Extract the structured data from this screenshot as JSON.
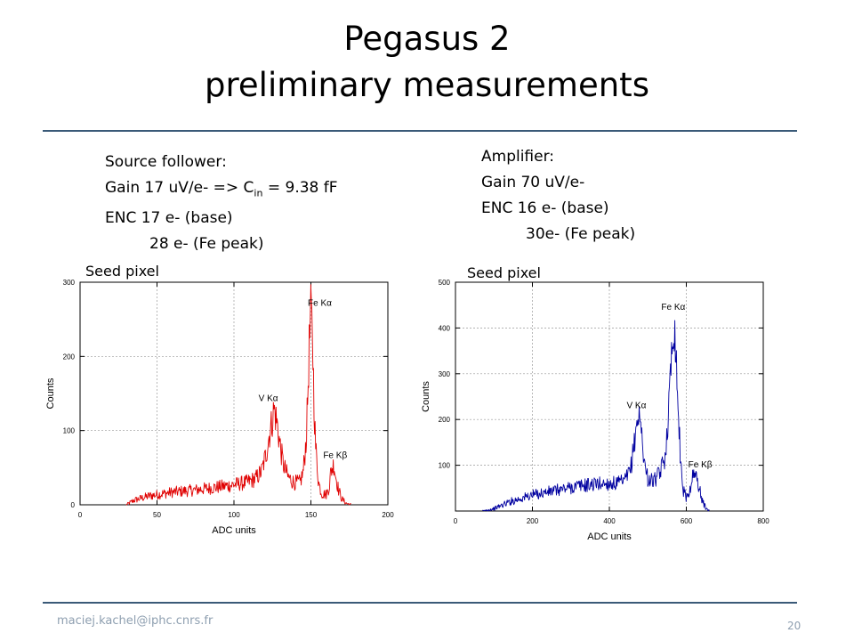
{
  "slide": {
    "title_line1": "Pegasus 2",
    "title_line2": "preliminary measurements",
    "footer_email": "maciej.kachel@iphc.cnrs.fr",
    "page_number": "20",
    "rule_color": "#3a5a78"
  },
  "left_info": {
    "heading": "Source follower:",
    "gain": "Gain 17 uV/e-  => C",
    "gain_sub": "in",
    "gain_tail": " = 9.38 fF",
    "enc": "ENC 17 e- (base)",
    "enc_peak": "28 e- (Fe peak)"
  },
  "right_info": {
    "heading": "Amplifier:",
    "gain": "Gain 70 uV/e-",
    "enc": "ENC 16 e- (base)",
    "enc_peak": "30e- (Fe peak)"
  },
  "chart_data": [
    {
      "type": "line",
      "heading": "Seed pixel",
      "xlabel": "ADC units",
      "ylabel": "Counts",
      "xlim": [
        0,
        200
      ],
      "ylim": [
        0,
        300
      ],
      "xticks": [
        0,
        50,
        100,
        150,
        200
      ],
      "yticks": [
        0,
        100,
        200,
        300
      ],
      "grid": true,
      "color": "#e00000",
      "envelope": [
        [
          30,
          0
        ],
        [
          35,
          6
        ],
        [
          45,
          12
        ],
        [
          60,
          17
        ],
        [
          75,
          20
        ],
        [
          90,
          24
        ],
        [
          100,
          27
        ],
        [
          108,
          30
        ],
        [
          114,
          35
        ],
        [
          118,
          45
        ],
        [
          121,
          70
        ],
        [
          123,
          95
        ],
        [
          125,
          115
        ],
        [
          126,
          130
        ],
        [
          128,
          110
        ],
        [
          130,
          80
        ],
        [
          132,
          55
        ],
        [
          135,
          38
        ],
        [
          139,
          30
        ],
        [
          143,
          30
        ],
        [
          145,
          45
        ],
        [
          147,
          90
        ],
        [
          148,
          150
        ],
        [
          149,
          220
        ],
        [
          150,
          260
        ],
        [
          151,
          230
        ],
        [
          152,
          140
        ],
        [
          153,
          80
        ],
        [
          155,
          30
        ],
        [
          157,
          15
        ],
        [
          160,
          14
        ],
        [
          162,
          25
        ],
        [
          163,
          45
        ],
        [
          164,
          50
        ],
        [
          165,
          55
        ],
        [
          166,
          40
        ],
        [
          168,
          20
        ],
        [
          170,
          8
        ],
        [
          173,
          2
        ],
        [
          176,
          0
        ]
      ],
      "annotations": [
        {
          "text": "Fe Kα",
          "x": 148,
          "y": 268
        },
        {
          "text": "V Kα",
          "x": 116,
          "y": 140
        },
        {
          "text": "Fe Kβ",
          "x": 158,
          "y": 63
        }
      ]
    },
    {
      "type": "line",
      "heading": "Seed pixel",
      "xlabel": "ADC units",
      "ylabel": "Counts",
      "xlim": [
        0,
        800
      ],
      "ylim": [
        0,
        500
      ],
      "xticks": [
        0,
        200,
        400,
        600,
        800
      ],
      "yticks": [
        100,
        200,
        300,
        400,
        500
      ],
      "grid": true,
      "color": "#0000a0",
      "envelope": [
        [
          70,
          0
        ],
        [
          100,
          5
        ],
        [
          140,
          20
        ],
        [
          200,
          35
        ],
        [
          260,
          45
        ],
        [
          320,
          55
        ],
        [
          380,
          60
        ],
        [
          420,
          60
        ],
        [
          440,
          65
        ],
        [
          455,
          90
        ],
        [
          465,
          150
        ],
        [
          472,
          200
        ],
        [
          478,
          205
        ],
        [
          484,
          170
        ],
        [
          492,
          100
        ],
        [
          500,
          70
        ],
        [
          515,
          65
        ],
        [
          530,
          80
        ],
        [
          545,
          120
        ],
        [
          555,
          230
        ],
        [
          562,
          360
        ],
        [
          568,
          415
        ],
        [
          574,
          330
        ],
        [
          580,
          200
        ],
        [
          586,
          100
        ],
        [
          592,
          45
        ],
        [
          600,
          30
        ],
        [
          608,
          40
        ],
        [
          614,
          70
        ],
        [
          620,
          80
        ],
        [
          626,
          75
        ],
        [
          634,
          50
        ],
        [
          642,
          20
        ],
        [
          652,
          5
        ],
        [
          660,
          0
        ]
      ],
      "annotations": [
        {
          "text": "Fe Kα",
          "x": 535,
          "y": 440
        },
        {
          "text": "V Kα",
          "x": 445,
          "y": 225
        },
        {
          "text": "Fe Kβ",
          "x": 605,
          "y": 95
        }
      ]
    }
  ]
}
